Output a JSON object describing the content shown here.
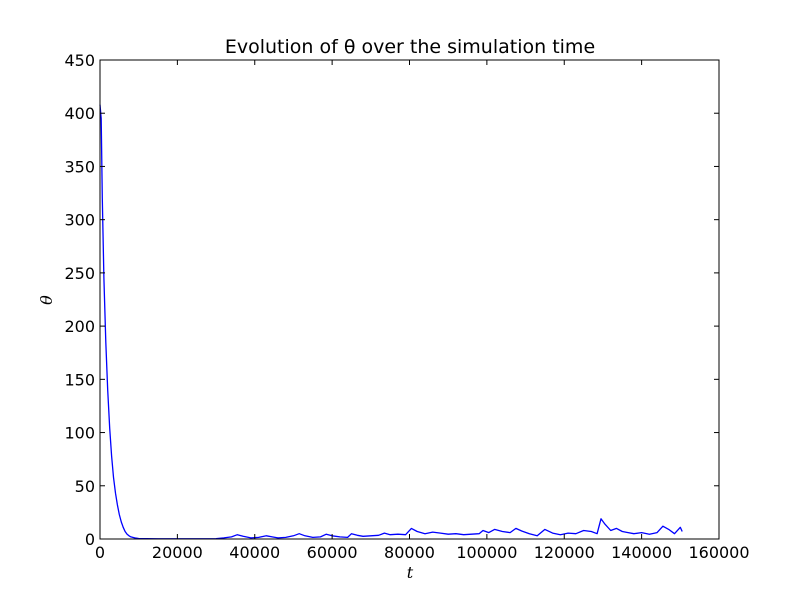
{
  "chart_data": {
    "type": "line",
    "title": "Evolution of θ over the simulation time",
    "xlabel": "t",
    "ylabel": "θ",
    "xlim": [
      0,
      160000
    ],
    "ylim": [
      0,
      450
    ],
    "xticks": [
      0,
      20000,
      40000,
      60000,
      80000,
      100000,
      120000,
      140000,
      160000
    ],
    "yticks": [
      0,
      50,
      100,
      150,
      200,
      250,
      300,
      350,
      400,
      450
    ],
    "grid": false,
    "legend": "none",
    "series": [
      {
        "color": "#0000ff",
        "x": [
          0,
          300,
          600,
          1000,
          1500,
          2000,
          2500,
          3000,
          3500,
          4000,
          4500,
          5000,
          5500,
          6000,
          6500,
          7000,
          7500,
          8000,
          9000,
          10000,
          12000,
          15000,
          20000,
          25000,
          30000,
          32000,
          34000,
          35500,
          37000,
          39000,
          41000,
          43000,
          44500,
          46000,
          48000,
          50000,
          51500,
          53000,
          55000,
          57000,
          58500,
          60000,
          62000,
          64000,
          65000,
          66500,
          68000,
          70000,
          72000,
          73500,
          75000,
          77000,
          79000,
          80500,
          82000,
          84000,
          86000,
          88000,
          90000,
          92000,
          94000,
          96000,
          98000,
          99000,
          100500,
          102000,
          104000,
          106000,
          107500,
          109000,
          111000,
          113000,
          115000,
          117000,
          119000,
          121000,
          123000,
          125000,
          127000,
          128500,
          129500,
          130500,
          132000,
          133500,
          135000,
          136500,
          138000,
          140000,
          142000,
          144000,
          145500,
          147000,
          148500,
          150000,
          150500
        ],
        "y": [
          408,
          395,
          320,
          245,
          185,
          140,
          104,
          78,
          58,
          43,
          32,
          23,
          16,
          11,
          7,
          4.5,
          3,
          2,
          1,
          0.5,
          0.3,
          0.2,
          0.2,
          0.2,
          0.3,
          1,
          2,
          4,
          2.5,
          1,
          1.5,
          3,
          2,
          1,
          1.5,
          3,
          5,
          3,
          1.5,
          2,
          4.5,
          3,
          2,
          1.5,
          5,
          3.5,
          2.5,
          3,
          3.5,
          5.5,
          4,
          4.5,
          4,
          10,
          7,
          5,
          6.5,
          5.5,
          4.5,
          5,
          4,
          4.5,
          5,
          8,
          6,
          9,
          7,
          6,
          10,
          7.5,
          5,
          3,
          9,
          5.5,
          4,
          5.5,
          5,
          8,
          7,
          5,
          19,
          14,
          8,
          10,
          7,
          6,
          5,
          6,
          4.5,
          6,
          12,
          9,
          5,
          11,
          7
        ]
      }
    ]
  }
}
